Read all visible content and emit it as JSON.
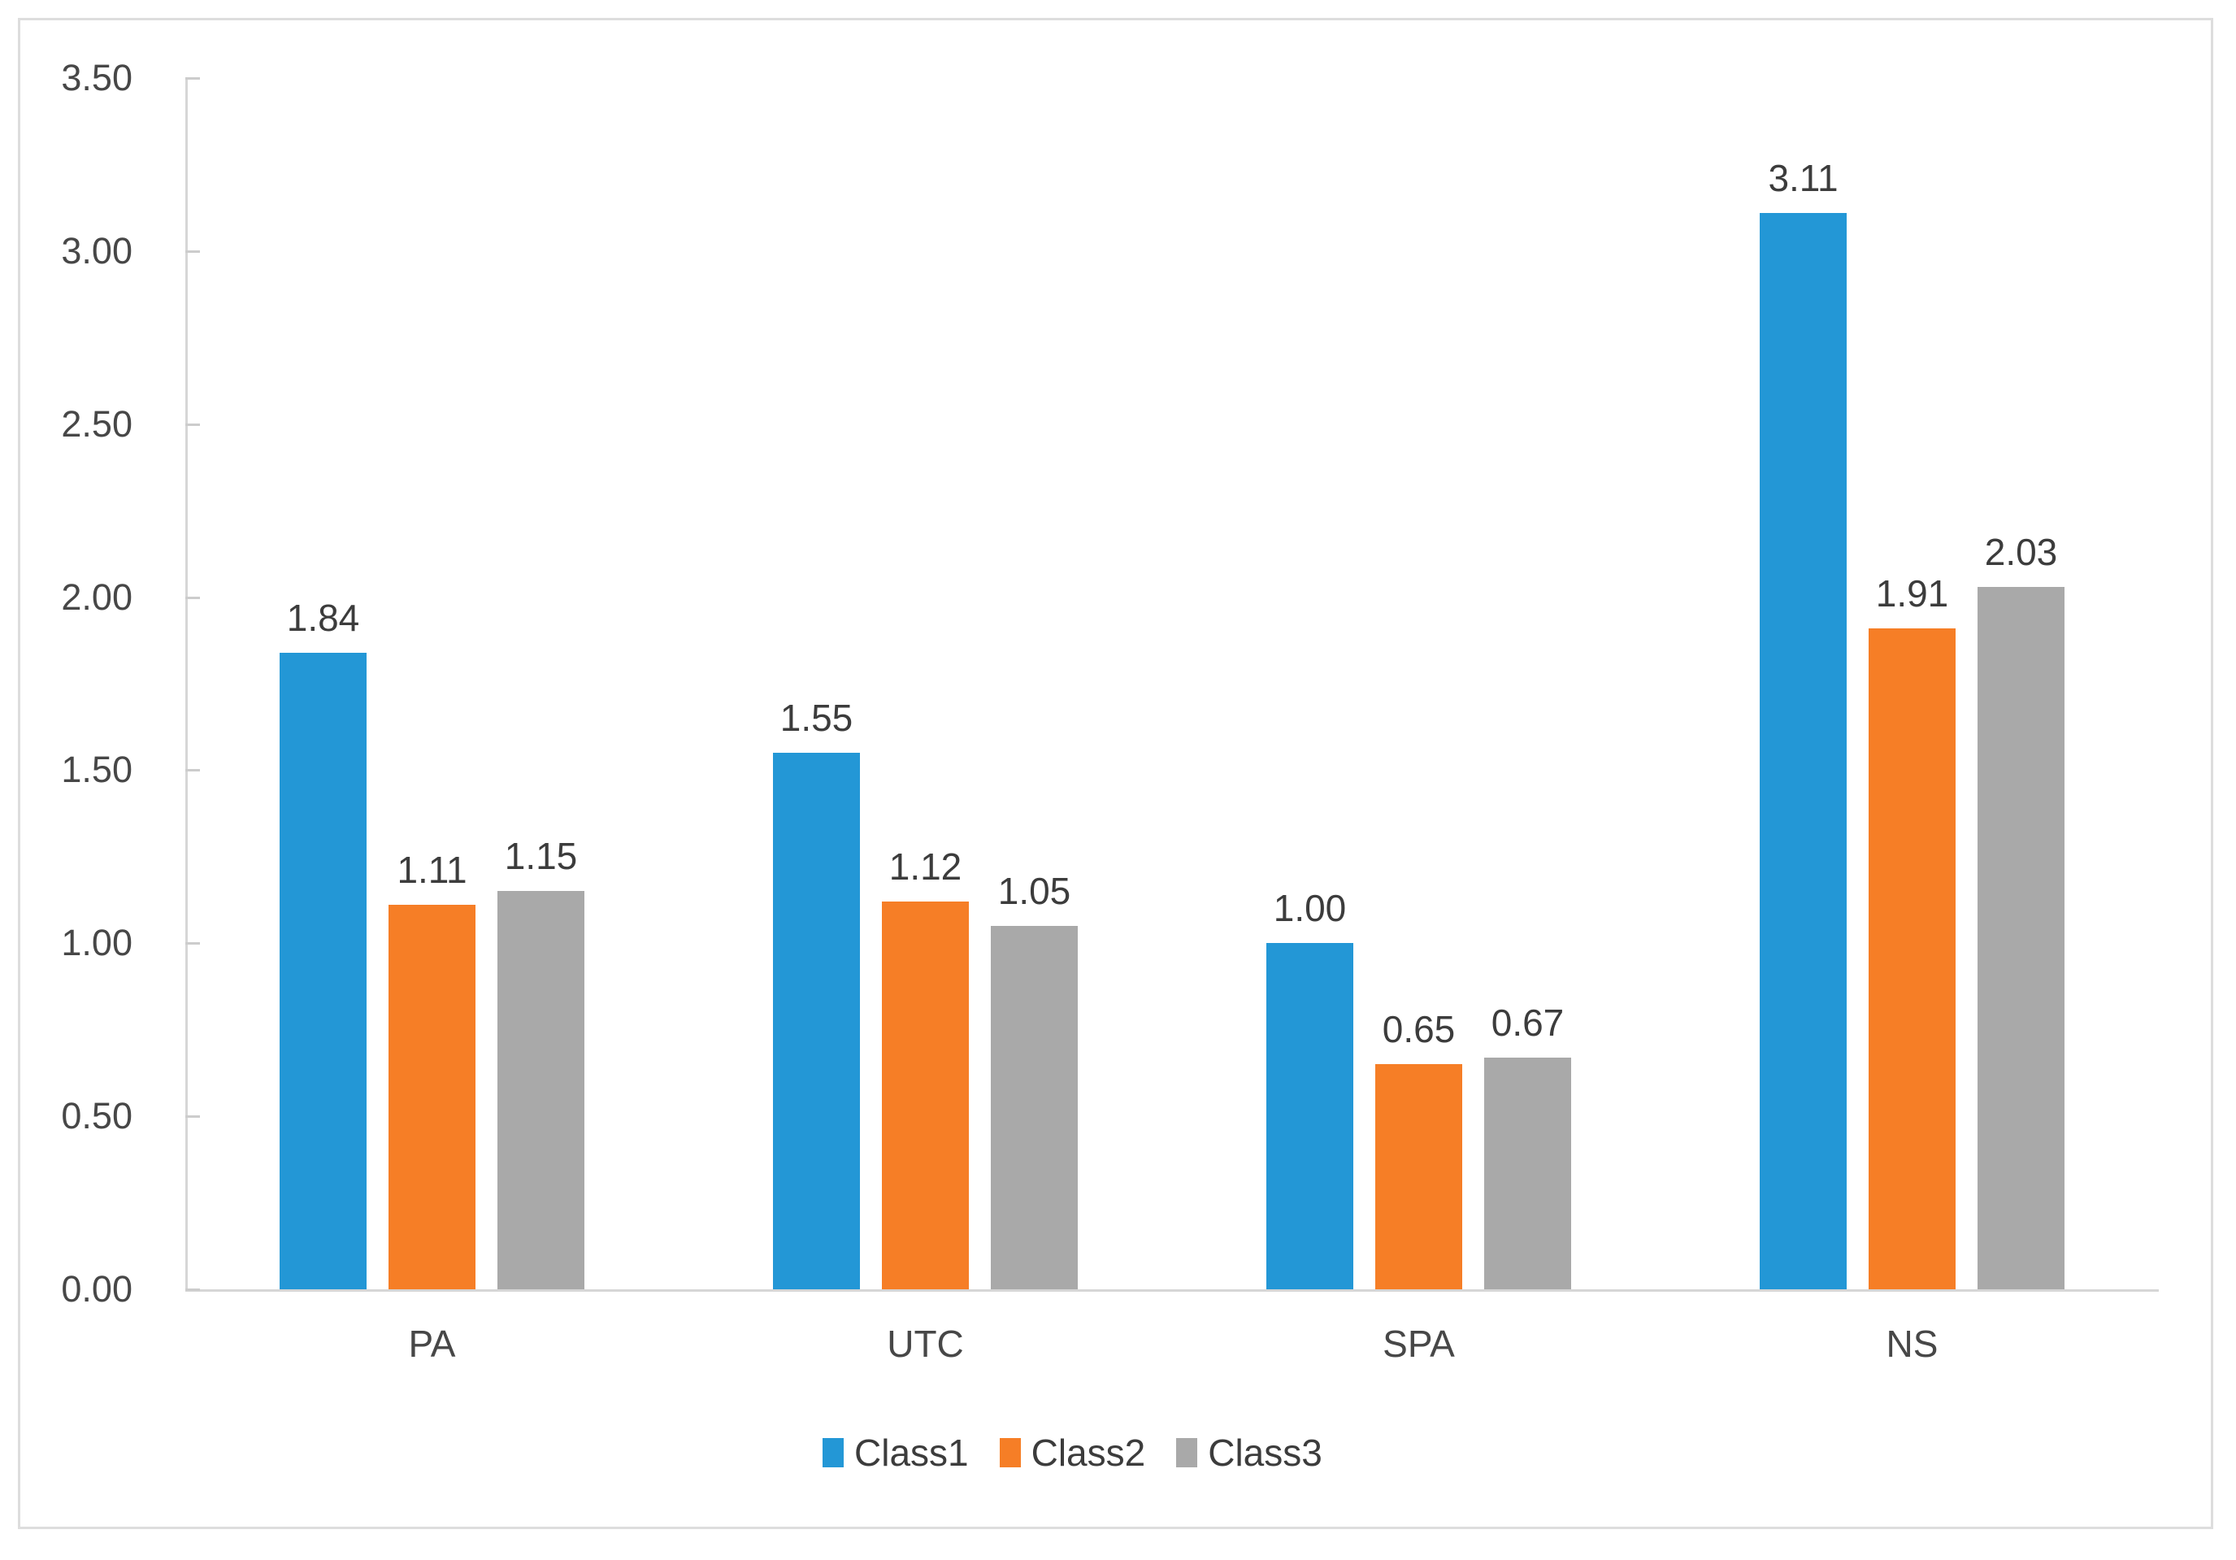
{
  "chart_data": {
    "type": "bar",
    "title": "",
    "xlabel": "",
    "ylabel": "",
    "categories": [
      "PA",
      "UTC",
      "SPA",
      "NS"
    ],
    "series": [
      {
        "name": "Class1",
        "color": "#2397d6",
        "values": [
          1.84,
          1.55,
          1.0,
          3.11
        ],
        "labels": [
          "1.84",
          "1.55",
          "1.00",
          "3.11"
        ]
      },
      {
        "name": "Class2",
        "color": "#f67e26",
        "values": [
          1.11,
          1.12,
          0.65,
          1.91
        ],
        "labels": [
          "1.11",
          "1.12",
          "0.65",
          "1.91"
        ]
      },
      {
        "name": "Class3",
        "color": "#a9a9a9",
        "values": [
          1.15,
          1.05,
          0.67,
          2.03
        ],
        "labels": [
          "1.15",
          "1.05",
          "0.67",
          "2.03"
        ]
      }
    ],
    "y_axis": {
      "min": 0,
      "max": 3.5,
      "step": 0.5,
      "tick_labels": [
        "0.00",
        "0.50",
        "1.00",
        "1.50",
        "2.00",
        "2.50",
        "3.00",
        "3.50"
      ]
    },
    "grid": false,
    "data_labels": true,
    "legend_position": "bottom"
  },
  "styles": {
    "axis_line_color": "#d6d6d6",
    "tick_color": "#cccccc",
    "axis_text_color": "#474747",
    "label_text_color": "#3c3c3c",
    "figure_border_color": "#dddddd",
    "background_color": "#ffffff"
  }
}
